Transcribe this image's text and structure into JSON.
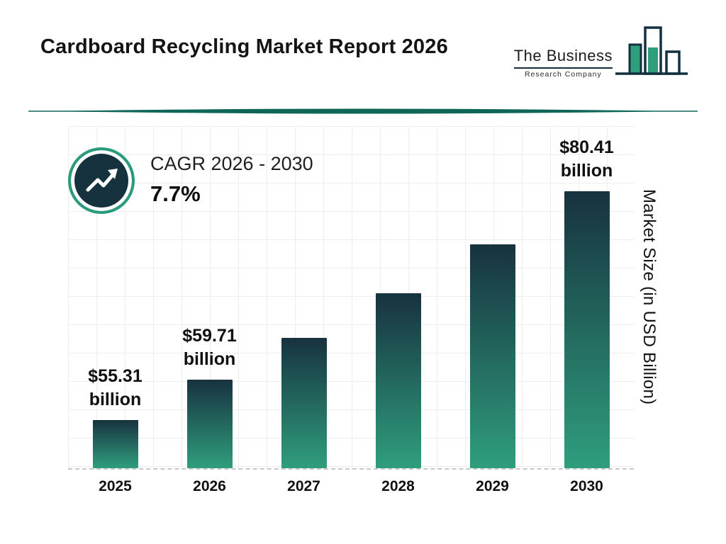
{
  "header": {
    "title": "Cardboard Recycling Market Report 2026",
    "logo": {
      "line1": "The Business",
      "line2": "Research Company"
    }
  },
  "cagr": {
    "label": "CAGR 2026 - 2030",
    "value": "7.7%"
  },
  "colors": {
    "bar_gradient_top": "#17323f",
    "bar_gradient_bottom": "#2f9e7d",
    "accent_teal": "#2a9c7d",
    "navy": "#16323e",
    "divider": "#0e6657",
    "grid": "#ededed"
  },
  "chart_data": {
    "type": "bar",
    "title": "Cardboard Recycling Market Report 2026",
    "xlabel": "",
    "ylabel": "Market Size (in USD Billion)",
    "categories": [
      "2025",
      "2026",
      "2027",
      "2028",
      "2029",
      "2030"
    ],
    "values": [
      55.31,
      59.71,
      64.31,
      69.26,
      74.6,
      80.41
    ],
    "value_labels": [
      {
        "amount": "$55.31",
        "unit": "billion"
      },
      {
        "amount": "$59.71",
        "unit": "billion"
      },
      null,
      null,
      null,
      {
        "amount": "$80.41",
        "unit": "billion"
      }
    ],
    "ylim": [
      50,
      87.6
    ],
    "grid": true,
    "legend": null,
    "baseline_style": "dashed"
  }
}
